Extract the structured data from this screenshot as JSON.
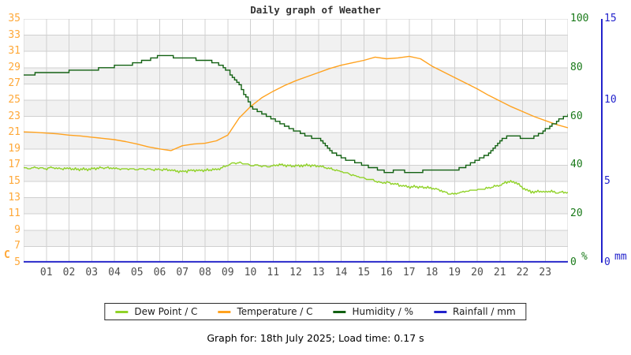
{
  "title": "Daily graph of Weather",
  "footer": "Graph for: 18th July 2025; Load time: 0.17 s",
  "axes": {
    "left": {
      "unit": "C",
      "color": "#ffa838",
      "ticks": [
        "35",
        "33",
        "31",
        "29",
        "27",
        "25",
        "23",
        "21",
        "19",
        "17",
        "15",
        "13",
        "11",
        "9",
        "7",
        "5"
      ]
    },
    "humidity": {
      "unit": "%",
      "color": "#1a7a1a",
      "ticks": [
        "100",
        "80",
        "60",
        "40",
        "20",
        "0"
      ]
    },
    "rainfall": {
      "unit": "mm",
      "color": "#2323cc",
      "ticks": [
        "15",
        "10",
        "5",
        "0"
      ]
    },
    "x": {
      "tick_labels": [
        "01",
        "02",
        "03",
        "04",
        "05",
        "06",
        "07",
        "08",
        "09",
        "10",
        "11",
        "12",
        "13",
        "14",
        "15",
        "16",
        "17",
        "18",
        "19",
        "20",
        "21",
        "22",
        "23"
      ],
      "color": "#4d4d4d"
    }
  },
  "legend": [
    {
      "label": "Dew Point / C",
      "color": "#90d228"
    },
    {
      "label": "Temperature / C",
      "color": "#ffa21f"
    },
    {
      "label": "Humidity / %",
      "color": "#126112"
    },
    {
      "label": "Rainfall / mm",
      "color": "#2222cc"
    }
  ],
  "style": {
    "band_fill": "#f1f1f1",
    "grid_color": "#d0d0d0",
    "title_color": "#333333"
  },
  "chart_data": {
    "type": "line",
    "title": "Daily graph of Weather",
    "x_unit": "hour",
    "x_range": [
      0,
      24
    ],
    "grid": true,
    "axes": {
      "temperature_c": {
        "min": 5,
        "max": 35,
        "tick_step": 2
      },
      "humidity_pct": {
        "min": 0,
        "max": 100,
        "tick_step": 20
      },
      "rainfall_mm": {
        "min": 0,
        "max": 15,
        "tick_step": 5
      }
    },
    "series": [
      {
        "name": "Dew Point / C",
        "axis": "temperature_c",
        "color": "#90d228",
        "style": "noisy-line",
        "x": [
          0,
          0.25,
          0.5,
          0.75,
          1,
          1.25,
          1.5,
          1.75,
          2,
          2.25,
          2.5,
          2.75,
          3,
          3.25,
          3.5,
          3.75,
          4,
          4.25,
          4.5,
          4.75,
          5,
          5.25,
          5.5,
          5.75,
          6,
          6.25,
          6.5,
          6.75,
          7,
          7.25,
          7.5,
          7.75,
          8,
          8.25,
          8.5,
          8.75,
          9,
          9.25,
          9.5,
          9.75,
          10,
          10.25,
          10.5,
          10.75,
          11,
          11.25,
          11.5,
          11.75,
          12,
          12.25,
          12.5,
          12.75,
          13,
          13.25,
          13.5,
          13.75,
          14,
          14.25,
          14.5,
          14.75,
          15,
          15.25,
          15.5,
          15.75,
          16,
          16.25,
          16.5,
          16.75,
          17,
          17.25,
          17.5,
          17.75,
          18,
          18.25,
          18.5,
          18.75,
          19,
          19.25,
          19.5,
          19.75,
          20,
          20.25,
          20.5,
          20.75,
          21,
          21.25,
          21.5,
          21.75,
          22,
          22.25,
          22.5,
          22.75,
          23,
          23.25,
          23.5,
          23.75,
          24
        ],
        "values": [
          16.7,
          16.6,
          16.7,
          16.65,
          16.6,
          16.7,
          16.6,
          16.55,
          16.6,
          16.5,
          16.45,
          16.5,
          16.55,
          16.6,
          16.7,
          16.65,
          16.6,
          16.55,
          16.5,
          16.55,
          16.5,
          16.55,
          16.5,
          16.45,
          16.5,
          16.45,
          16.4,
          16.3,
          16.2,
          16.3,
          16.4,
          16.35,
          16.4,
          16.45,
          16.5,
          16.7,
          17.0,
          17.25,
          17.3,
          17.15,
          17.0,
          16.95,
          16.9,
          16.85,
          16.9,
          17.05,
          17.0,
          16.9,
          16.9,
          16.95,
          17.0,
          16.95,
          16.9,
          16.75,
          16.6,
          16.4,
          16.2,
          16.0,
          15.8,
          15.6,
          15.4,
          15.25,
          15.1,
          14.8,
          14.9,
          14.75,
          14.6,
          14.45,
          14.3,
          14.35,
          14.3,
          14.25,
          14.2,
          14.0,
          13.8,
          13.5,
          13.45,
          13.6,
          13.8,
          13.9,
          14.0,
          14.1,
          14.2,
          14.35,
          14.5,
          14.9,
          15.0,
          14.8,
          14.2,
          13.8,
          13.7,
          13.8,
          13.7,
          13.8,
          13.6,
          13.7,
          13.6
        ]
      },
      {
        "name": "Temperature / C",
        "axis": "temperature_c",
        "color": "#ffa21f",
        "style": "line",
        "x": [
          0,
          0.5,
          1,
          1.5,
          2,
          2.5,
          3,
          3.5,
          4,
          4.5,
          5,
          5.5,
          6,
          6.5,
          7,
          7.5,
          8,
          8.5,
          9,
          9.5,
          10,
          10.5,
          11,
          11.5,
          12,
          12.5,
          13,
          13.5,
          14,
          14.5,
          15,
          15.5,
          16,
          16.5,
          17,
          17.5,
          18,
          18.5,
          19,
          19.5,
          20,
          20.5,
          21,
          21.5,
          22,
          22.5,
          23,
          23.5,
          24
        ],
        "values": [
          21.1,
          21.05,
          20.95,
          20.85,
          20.7,
          20.6,
          20.45,
          20.3,
          20.15,
          19.9,
          19.6,
          19.25,
          19.0,
          18.8,
          19.4,
          19.6,
          19.7,
          20.0,
          20.7,
          22.8,
          24.2,
          25.3,
          26.1,
          26.8,
          27.4,
          27.9,
          28.4,
          28.9,
          29.3,
          29.6,
          29.9,
          30.3,
          30.1,
          30.2,
          30.4,
          30.1,
          29.2,
          28.5,
          27.8,
          27.1,
          26.4,
          25.6,
          24.9,
          24.2,
          23.6,
          23.0,
          22.5,
          22.0,
          21.6
        ]
      },
      {
        "name": "Humidity / %",
        "axis": "humidity_pct",
        "color": "#126112",
        "style": "step",
        "x": [
          0,
          0.5,
          1,
          1.5,
          2,
          2.5,
          3,
          3.5,
          4,
          4.5,
          5,
          5.5,
          6,
          6.5,
          7,
          7.5,
          8,
          8.5,
          9,
          9.5,
          10,
          10.5,
          11,
          11.5,
          12,
          12.5,
          13,
          13.5,
          14,
          14.5,
          15,
          15.5,
          16,
          16.5,
          17,
          17.5,
          18,
          18.5,
          19,
          19.5,
          20,
          20.5,
          21,
          21.5,
          22,
          22.5,
          23,
          23.5,
          24
        ],
        "values": [
          77,
          77.5,
          78,
          78,
          78.5,
          79,
          79,
          80,
          80.5,
          81,
          82,
          83.5,
          85,
          84.5,
          84,
          83.5,
          83,
          82,
          78.5,
          73,
          64,
          61,
          58.5,
          56,
          54,
          52,
          50.5,
          46,
          43,
          41.5,
          40,
          38.5,
          37,
          38,
          37,
          37.5,
          38,
          37.5,
          38,
          39.5,
          42,
          45,
          50,
          52.5,
          51,
          51.5,
          54.5,
          58,
          60.5
        ]
      },
      {
        "name": "Rainfall / mm",
        "axis": "rainfall_mm",
        "color": "#2222cc",
        "style": "line",
        "x": [
          0,
          24
        ],
        "values": [
          0,
          0
        ]
      }
    ]
  }
}
